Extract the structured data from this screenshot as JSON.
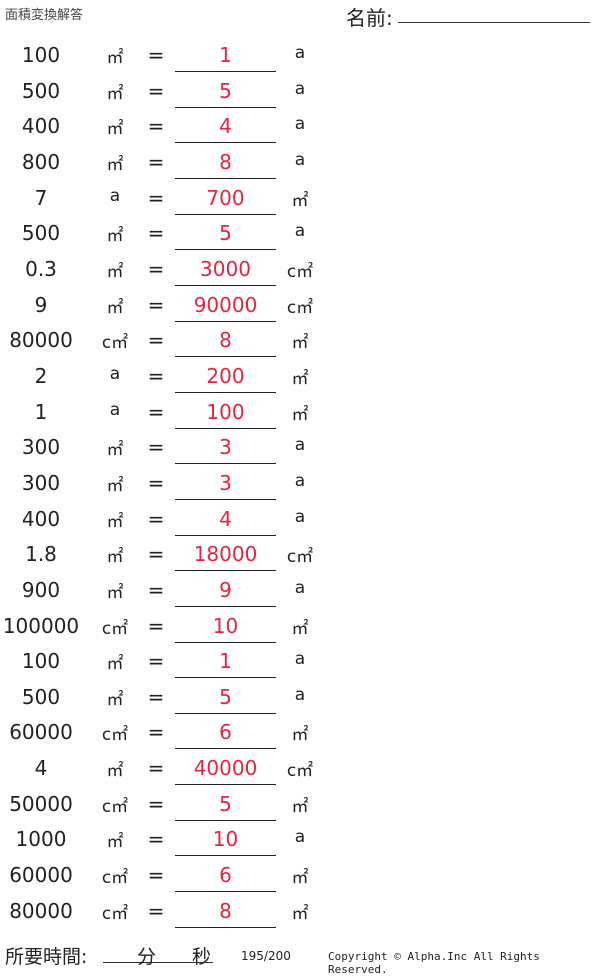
{
  "header": {
    "title": "面積変換解答",
    "name_label": "名前:"
  },
  "problems": [
    [
      "100",
      "㎡",
      "1",
      "a"
    ],
    [
      "500",
      "㎡",
      "5",
      "a"
    ],
    [
      "400",
      "㎡",
      "4",
      "a"
    ],
    [
      "800",
      "㎡",
      "8",
      "a"
    ],
    [
      "7",
      "a",
      "700",
      "㎡"
    ],
    [
      "500",
      "㎡",
      "5",
      "a"
    ],
    [
      "0.3",
      "㎡",
      "3000",
      "c㎡"
    ],
    [
      "9",
      "㎡",
      "90000",
      "c㎡"
    ],
    [
      "80000",
      "c㎡",
      "8",
      "㎡"
    ],
    [
      "2",
      "a",
      "200",
      "㎡"
    ],
    [
      "1",
      "a",
      "100",
      "㎡"
    ],
    [
      "300",
      "㎡",
      "3",
      "a"
    ],
    [
      "300",
      "㎡",
      "3",
      "a"
    ],
    [
      "400",
      "㎡",
      "4",
      "a"
    ],
    [
      "1.8",
      "㎡",
      "18000",
      "c㎡"
    ],
    [
      "900",
      "㎡",
      "9",
      "a"
    ],
    [
      "100000",
      "c㎡",
      "10",
      "㎡"
    ],
    [
      "100",
      "㎡",
      "1",
      "a"
    ],
    [
      "500",
      "㎡",
      "5",
      "a"
    ],
    [
      "60000",
      "c㎡",
      "6",
      "㎡"
    ],
    [
      "4",
      "㎡",
      "40000",
      "c㎡"
    ],
    [
      "50000",
      "c㎡",
      "5",
      "㎡"
    ],
    [
      "1000",
      "㎡",
      "10",
      "a"
    ],
    [
      "60000",
      "c㎡",
      "6",
      "㎡"
    ],
    [
      "80000",
      "c㎡",
      "8",
      "㎡"
    ]
  ],
  "equals": "=",
  "answer_color": "#e8233f",
  "footer": {
    "time_label": "所要時間:",
    "minutes": "分",
    "seconds": "秒",
    "page": "195/200",
    "copyright": "Copyright © Alpha.Inc All Rights Reserved."
  }
}
